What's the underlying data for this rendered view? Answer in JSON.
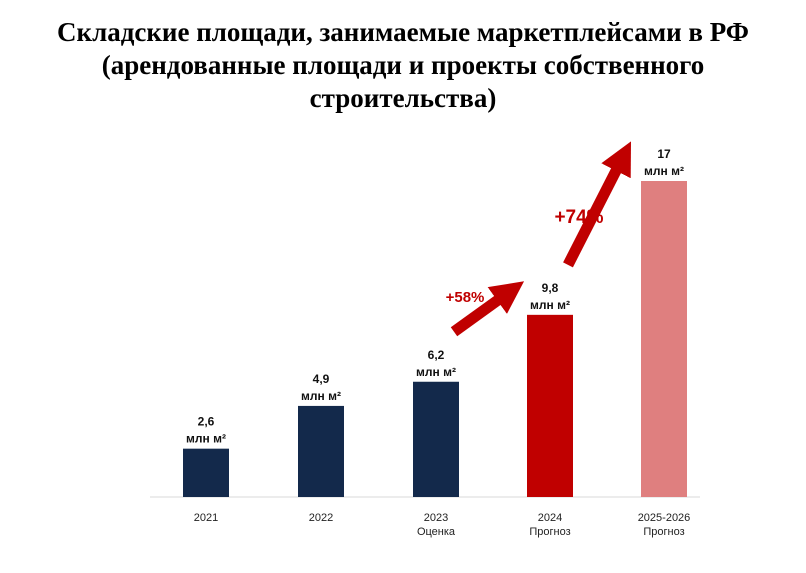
{
  "chart_data": {
    "type": "bar",
    "title_lines": [
      "Складские площади, занимаемые маркетплейсами в РФ",
      "(арендованные площади и проекты собственного",
      "строительства)"
    ],
    "categories": [
      [
        "2021"
      ],
      [
        "2022"
      ],
      [
        "2023",
        "Оценка"
      ],
      [
        "2024",
        "Прогноз"
      ],
      [
        "2025-2026",
        "Прогноз"
      ]
    ],
    "values": [
      2.6,
      4.9,
      6.2,
      9.8,
      17
    ],
    "value_labels": [
      "2,6",
      "4,9",
      "6,2",
      "9,8",
      "17"
    ],
    "unit_label": "млн м²",
    "bar_colors": [
      "#13294b",
      "#13294b",
      "#13294b",
      "#c00000",
      "#df7f7f"
    ],
    "ylim": [
      0,
      17
    ],
    "xlabel": "",
    "ylabel": "",
    "grid": false,
    "growth_annotations": [
      {
        "text": "+58%",
        "from_index": 2,
        "to_index": 3
      },
      {
        "text": "+74%",
        "from_index": 3,
        "to_index": 4
      }
    ],
    "accent_color": "#c00000"
  }
}
